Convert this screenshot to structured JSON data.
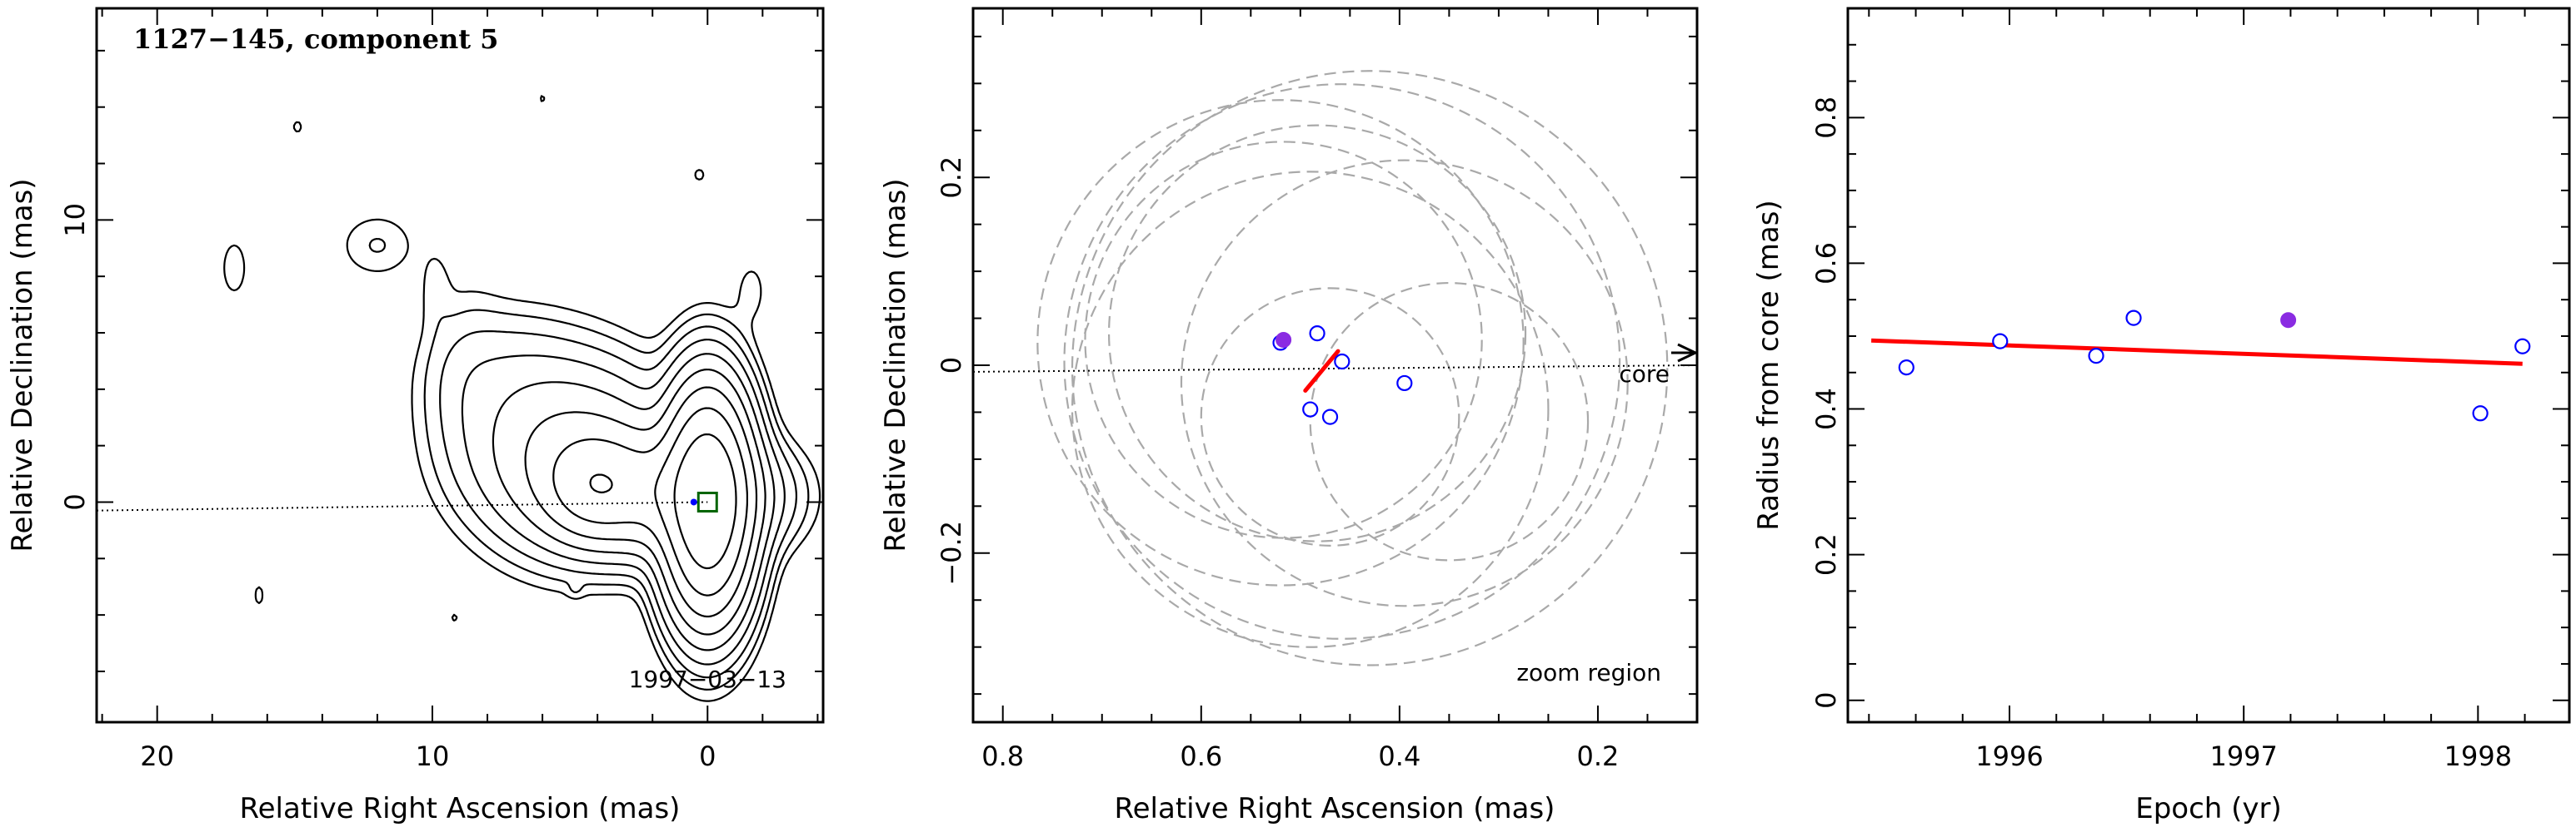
{
  "chart_data": [
    {
      "type": "contour",
      "title": "1127−145, component 5",
      "annotation": "1997−03−13",
      "xlabel": "Relative Right Ascension (mas)",
      "ylabel": "Relative Declination (mas)",
      "xlim": [
        22.2,
        -4.2
      ],
      "ylim": [
        -7.8,
        17.5
      ],
      "xticks": [
        20,
        10,
        0
      ],
      "xtick_labels": [
        "20",
        "10",
        "0"
      ],
      "yticks": [
        10,
        0
      ],
      "ytick_labels": [
        "10",
        "0"
      ],
      "core_marker": {
        "x": 0.0,
        "y": 0.0
      },
      "component_marker": {
        "x": 0.5,
        "y": 0.0
      },
      "jet_direction_line": {
        "x": [
          22.2,
          0
        ],
        "y": [
          -0.3,
          0
        ]
      },
      "contour_sources": [
        {
          "x": 0.0,
          "y": 0.0,
          "sx": 0.8,
          "sy": 2.0,
          "amp": 100
        },
        {
          "x": 0.9,
          "y": 0.2,
          "sx": 1.7,
          "sy": 1.1,
          "amp": 14
        },
        {
          "x": 2.4,
          "y": 0.6,
          "sx": 1.8,
          "sy": 1.2,
          "amp": 5
        },
        {
          "x": 4.1,
          "y": 0.6,
          "sx": 1.0,
          "sy": 1.0,
          "amp": 14
        },
        {
          "x": 4.6,
          "y": 1.4,
          "sx": 1.9,
          "sy": 1.7,
          "amp": 7
        },
        {
          "x": 6.0,
          "y": 2.6,
          "sx": 1.9,
          "sy": 1.8,
          "amp": 2.2
        },
        {
          "x": 7.6,
          "y": 4.6,
          "sx": 1.5,
          "sy": 1.3,
          "amp": 0.7
        },
        {
          "x": 8.8,
          "y": 4.3,
          "sx": 0.9,
          "sy": 2.0,
          "amp": 0.45
        },
        {
          "x": 12.0,
          "y": 9.1,
          "sx": 0.9,
          "sy": 0.75,
          "amp": 0.42
        },
        {
          "x": 17.2,
          "y": 8.3,
          "sx": 0.5,
          "sy": 1.1,
          "amp": 0.26
        },
        {
          "x": 9.9,
          "y": 7.6,
          "sx": 0.38,
          "sy": 1.0,
          "amp": 0.26
        },
        {
          "x": -1.6,
          "y": 7.5,
          "sx": 0.45,
          "sy": 0.9,
          "amp": 0.26
        },
        {
          "x": 0.3,
          "y": 11.6,
          "sx": 0.35,
          "sy": 0.4,
          "amp": 0.22
        },
        {
          "x": 14.9,
          "y": 13.3,
          "sx": 0.3,
          "sy": 0.4,
          "amp": 0.22
        },
        {
          "x": 6.0,
          "y": 14.3,
          "sx": 0.22,
          "sy": 0.35,
          "amp": 0.21
        },
        {
          "x": 16.3,
          "y": -3.3,
          "sx": 0.3,
          "sy": 0.65,
          "amp": 0.22
        },
        {
          "x": 9.2,
          "y": -4.1,
          "sx": 0.25,
          "sy": 0.3,
          "amp": 0.21
        },
        {
          "x": 4.8,
          "y": -3.1,
          "sx": 0.2,
          "sy": 0.2,
          "amp": 0.205
        },
        {
          "x": 0.0,
          "y": 3.0,
          "sx": 0.18,
          "sy": 0.2,
          "amp": 0.205
        },
        {
          "x": 9.0,
          "y": 11.2,
          "sx": 0.15,
          "sy": 0.15,
          "amp": 0.202
        }
      ],
      "contour_levels": [
        0.2,
        0.4,
        0.8,
        1.6,
        3.2,
        6.4,
        12.8,
        25.6,
        51.2
      ]
    },
    {
      "type": "scatter",
      "xlabel": "Relative Right Ascension (mas)",
      "ylabel": "Relative Declination (mas)",
      "xlim": [
        0.83,
        0.1
      ],
      "ylim": [
        -0.38,
        0.38
      ],
      "xticks": [
        0.8,
        0.6,
        0.4,
        0.2
      ],
      "xtick_labels": [
        "0.8",
        "0.6",
        "0.4",
        "0.2"
      ],
      "yticks": [
        0.2,
        0,
        -0.2
      ],
      "ytick_labels": [
        "0.2",
        "0",
        "−0.2"
      ],
      "annotations": {
        "core": "core",
        "zoom": "zoom region"
      },
      "open_points": {
        "x": [
          0.52,
          0.483,
          0.458,
          0.49,
          0.47,
          0.395
        ],
        "y": [
          0.024,
          0.034,
          0.004,
          -0.047,
          -0.055,
          -0.019
        ]
      },
      "filled_point": {
        "x": 0.517,
        "y": 0.027
      },
      "trend_segment": {
        "x": [
          0.495,
          0.462
        ],
        "y": [
          -0.027,
          0.015
        ]
      },
      "direction_line": {
        "x": [
          0.83,
          0.1
        ],
        "y": [
          -0.007,
          0.0
        ]
      },
      "error_circles": [
        {
          "x": 0.52,
          "y": 0.024,
          "r": 0.245
        },
        {
          "x": 0.483,
          "y": 0.034,
          "r": 0.21
        },
        {
          "x": 0.458,
          "y": 0.004,
          "r": 0.28
        },
        {
          "x": 0.49,
          "y": -0.047,
          "r": 0.24
        },
        {
          "x": 0.47,
          "y": -0.055,
          "r": 0.13
        },
        {
          "x": 0.395,
          "y": -0.019,
          "r": 0.225
        },
        {
          "x": 0.517,
          "y": 0.027,
          "r": 0.2
        },
        {
          "x": 0.43,
          "y": -0.003,
          "r": 0.3
        },
        {
          "x": 0.35,
          "y": -0.06,
          "r": 0.14
        }
      ],
      "colors": {
        "open": "#0000ff",
        "filled": "#8a2be2",
        "trend": "#ff0000",
        "circle": "#a9a9a9"
      }
    },
    {
      "type": "scatter",
      "xlabel": "Epoch (yr)",
      "ylabel": "Radius from core (mas)",
      "xlim": [
        1995.31,
        1998.39
      ],
      "ylim": [
        -0.03,
        0.95
      ],
      "xticks": [
        1996,
        1997,
        1998
      ],
      "xtick_labels": [
        "1996",
        "1997",
        "1998"
      ],
      "yticks": [
        0,
        0.2,
        0.4,
        0.6,
        0.8
      ],
      "ytick_labels": [
        "0",
        "0.2",
        "0.4",
        "0.6",
        "0.8"
      ],
      "open_points": {
        "x": [
          1995.56,
          1995.96,
          1996.37,
          1996.53,
          1998.01,
          1998.19
        ],
        "y": [
          0.457,
          0.493,
          0.473,
          0.525,
          0.394,
          0.486
        ]
      },
      "filled_point": {
        "x": 1997.19,
        "y": 0.522
      },
      "fit_line": {
        "x": [
          1995.41,
          1998.19
        ],
        "y": [
          0.494,
          0.462
        ]
      },
      "colors": {
        "open": "#0000ff",
        "filled": "#8a2be2",
        "fit": "#ff0000"
      }
    }
  ]
}
